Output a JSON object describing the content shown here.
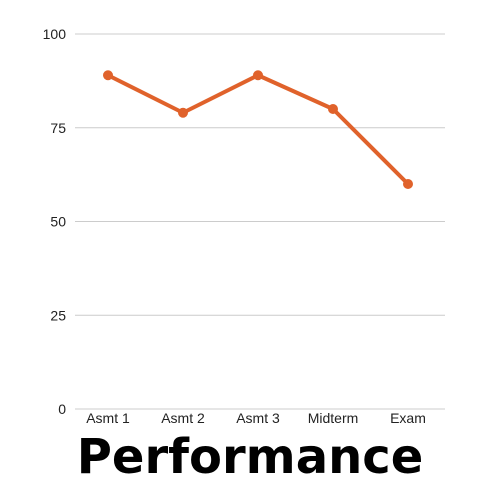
{
  "chart_data": {
    "type": "line",
    "title": "Performance",
    "categories": [
      "Asmt 1",
      "Asmt 2",
      "Asmt 3",
      "Midterm",
      "Exam"
    ],
    "series": [
      {
        "values": [
          89,
          79,
          89,
          80,
          60
        ]
      }
    ],
    "ylim": [
      0,
      100
    ],
    "yticks": [
      0,
      25,
      50,
      75,
      100
    ],
    "grid": true,
    "legend": "none",
    "colors": {
      "line": "#e0622b",
      "grid": "#cccccc",
      "text": "#222222",
      "title": "#000000"
    }
  }
}
